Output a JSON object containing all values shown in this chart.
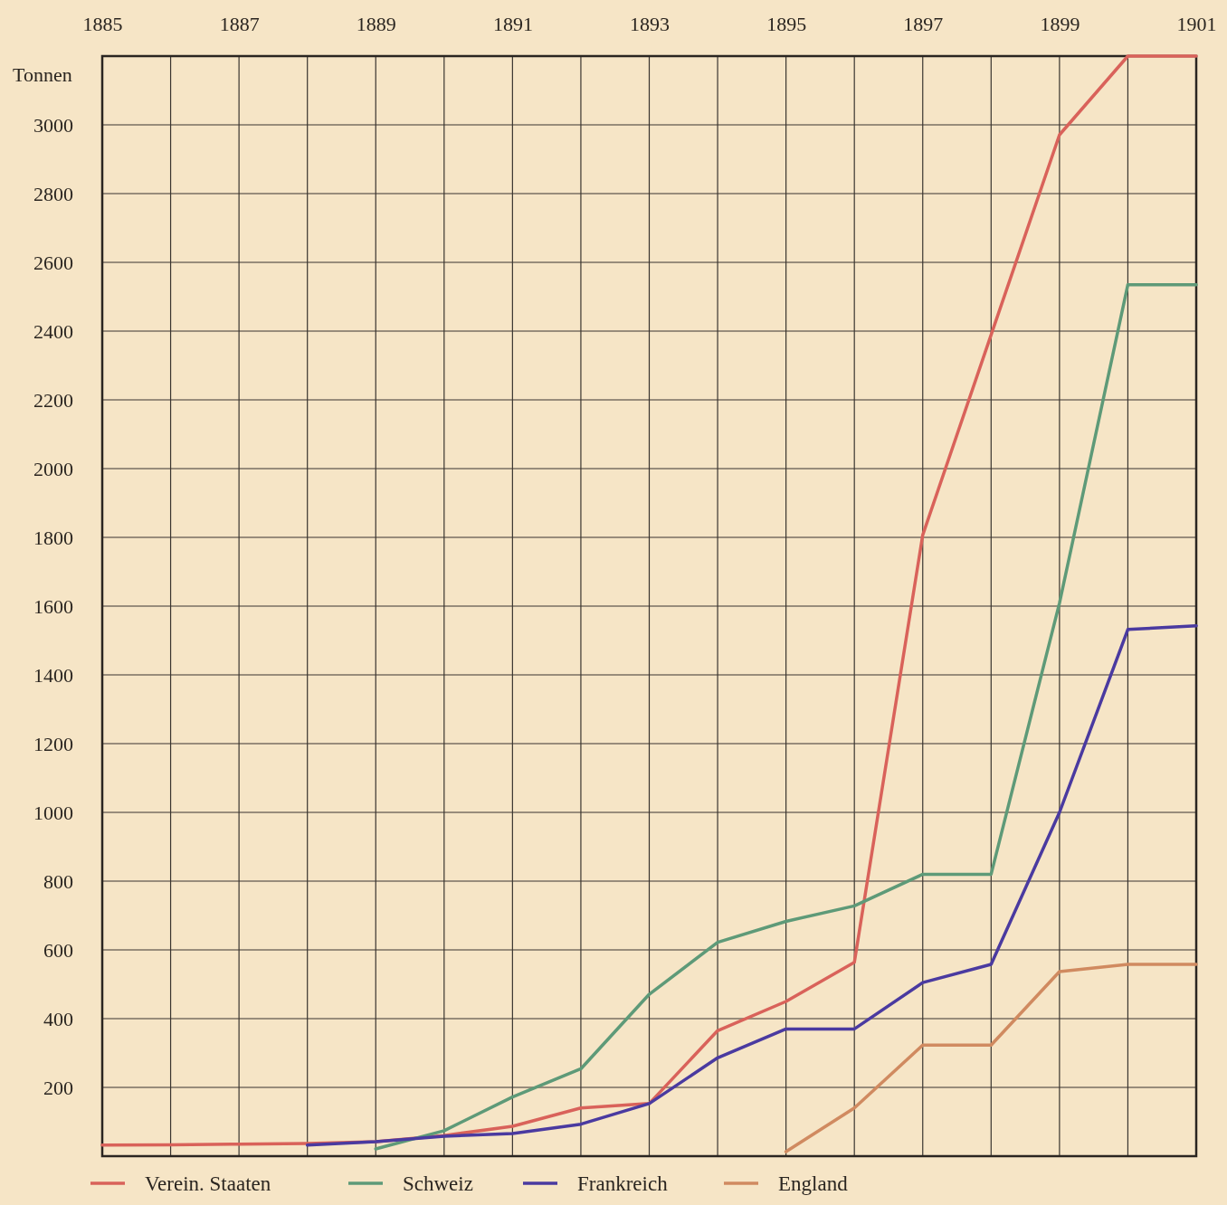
{
  "chart_data": {
    "type": "line",
    "ylabel": "Tonnen",
    "x": [
      1885,
      1886,
      1887,
      1888,
      1889,
      1890,
      1891,
      1892,
      1893,
      1894,
      1895,
      1896,
      1897,
      1898,
      1899,
      1900,
      1901
    ],
    "xlim": [
      1885,
      1901
    ],
    "xticks": [
      1885,
      {
        "value": 1886,
        "label": null
      },
      1887,
      {
        "value": 1888,
        "label": null
      },
      1889,
      {
        "value": 1890,
        "label": null
      },
      1891,
      {
        "value": 1892,
        "label": null
      },
      1893,
      {
        "value": 1894,
        "label": null
      },
      1895,
      {
        "value": 1896,
        "label": null
      },
      1897,
      {
        "value": 1898,
        "label": null
      },
      1899,
      {
        "value": 1900,
        "label": null
      },
      1901
    ],
    "ylim": [
      0,
      3200
    ],
    "yticks": [
      {
        "value": 0,
        "label": null
      },
      200,
      400,
      600,
      800,
      1000,
      1200,
      1400,
      1600,
      1800,
      2000,
      2200,
      2400,
      2600,
      2800,
      3000,
      {
        "value": 3200,
        "label": null
      }
    ],
    "grid": true,
    "legend": "bottom",
    "marker": "none",
    "line_style": "solid",
    "series": [
      {
        "name": "Verein. Staaten",
        "color": "#d9625a",
        "values": [
          32,
          33,
          35,
          37,
          42,
          60,
          87,
          140,
          153,
          365,
          450,
          564,
          1807,
          2389,
          2971,
          3200,
          3200
        ]
      },
      {
        "name": "Schweiz",
        "color": "#5e9a78",
        "values": [
          null,
          null,
          null,
          null,
          21,
          74,
          172,
          254,
          471,
          622,
          683,
          728,
          820,
          820,
          1609,
          2535,
          2535
        ]
      },
      {
        "name": "Frankreich",
        "color": "#4a3aa0",
        "values": [
          null,
          null,
          null,
          32,
          42,
          58,
          66,
          93,
          153,
          286,
          370,
          370,
          505,
          558,
          1000,
          1532,
          1543
        ]
      },
      {
        "name": "England",
        "color": "#d08a60",
        "values": [
          null,
          null,
          null,
          null,
          null,
          null,
          null,
          null,
          null,
          null,
          13,
          140,
          323,
          323,
          537,
          558,
          558
        ]
      }
    ]
  }
}
